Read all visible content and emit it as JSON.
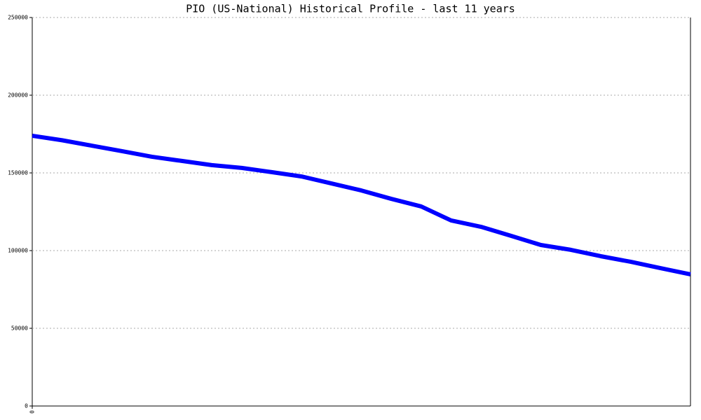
{
  "chart_data": {
    "type": "line",
    "title": "PIO (US-National) Historical Profile - last 11 years",
    "x": [
      0,
      1,
      2,
      3,
      4,
      5,
      6,
      7,
      8,
      9,
      10,
      11,
      12,
      13,
      14,
      15,
      16,
      17,
      18,
      19,
      20,
      21,
      22
    ],
    "series": [
      {
        "color": "#0000ff",
        "values": [
          173900,
          171000,
          167500,
          164000,
          160400,
          157700,
          155000,
          153200,
          150500,
          147700,
          143200,
          138700,
          133300,
          128400,
          119400,
          115300,
          109500,
          103600,
          100500,
          96400,
          92800,
          88700,
          84700
        ]
      }
    ],
    "xlim": [
      0,
      22
    ],
    "xticks": [
      0
    ],
    "ylim": [
      0,
      250000
    ],
    "yticks": [
      0,
      50000,
      100000,
      150000,
      200000,
      250000
    ],
    "grid": true
  }
}
